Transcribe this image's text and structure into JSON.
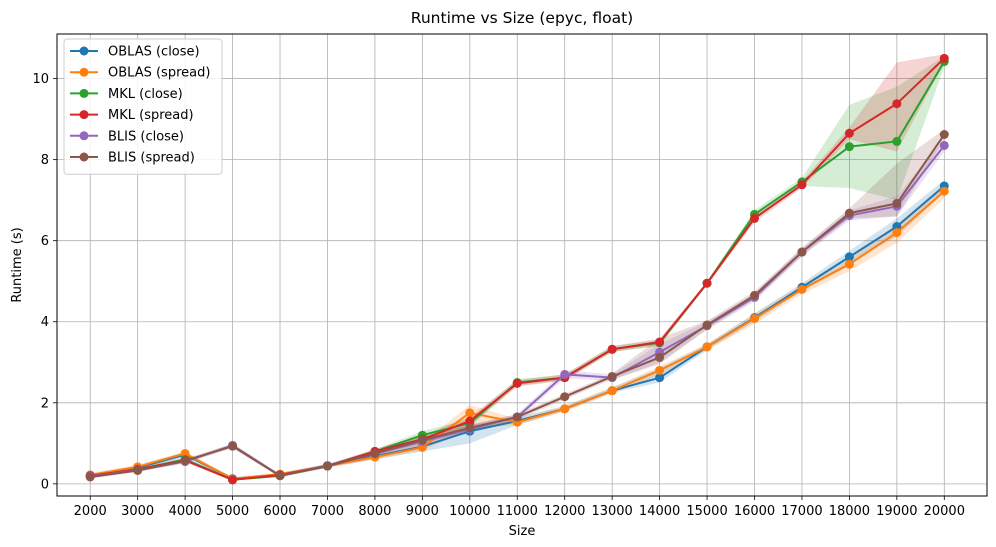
{
  "chart_data": {
    "type": "line",
    "title": "Runtime vs Size (epyc, float)",
    "xlabel": "Size",
    "ylabel": "Runtime (s)",
    "x": [
      2000,
      3000,
      4000,
      5000,
      6000,
      7000,
      8000,
      9000,
      10000,
      11000,
      12000,
      13000,
      14000,
      15000,
      16000,
      17000,
      18000,
      19000,
      20000
    ],
    "x_ticks": [
      "2000",
      "3000",
      "4000",
      "5000",
      "6000",
      "7000",
      "8000",
      "9000",
      "10000",
      "11000",
      "12000",
      "13000",
      "14000",
      "15000",
      "16000",
      "17000",
      "18000",
      "19000",
      "20000"
    ],
    "y_ticks": [
      "0",
      "2",
      "4",
      "6",
      "8",
      "10"
    ],
    "ylim": [
      -0.3,
      11.1
    ],
    "xlim": [
      1300,
      20900
    ],
    "grid": true,
    "legend_position": "top-left",
    "series": [
      {
        "name": "OBLAS (close)",
        "color": "#1f77b4",
        "values": [
          0.2,
          0.4,
          0.72,
          0.13,
          0.22,
          0.45,
          0.68,
          0.92,
          1.3,
          1.55,
          1.85,
          2.3,
          2.62,
          3.38,
          4.1,
          4.85,
          5.6,
          6.35,
          7.35
        ],
        "band_low": [
          0.15,
          0.35,
          0.65,
          0.1,
          0.18,
          0.4,
          0.6,
          0.8,
          1.0,
          1.45,
          1.8,
          2.25,
          2.5,
          3.3,
          4.0,
          4.75,
          5.45,
          6.1,
          7.2
        ],
        "band_high": [
          0.25,
          0.45,
          0.78,
          0.16,
          0.26,
          0.5,
          0.75,
          1.05,
          1.45,
          1.65,
          1.92,
          2.38,
          2.85,
          3.45,
          4.2,
          4.95,
          5.75,
          6.55,
          7.5
        ]
      },
      {
        "name": "OBLAS (spread)",
        "color": "#ff7f0e",
        "values": [
          0.22,
          0.42,
          0.75,
          0.12,
          0.24,
          0.44,
          0.66,
          0.9,
          1.75,
          1.52,
          1.85,
          2.3,
          2.8,
          3.38,
          4.08,
          4.8,
          5.42,
          6.2,
          7.22
        ],
        "band_low": [
          0.17,
          0.37,
          0.7,
          0.09,
          0.2,
          0.4,
          0.6,
          0.82,
          1.35,
          1.45,
          1.78,
          2.22,
          2.7,
          3.3,
          3.95,
          4.68,
          5.25,
          5.95,
          7.05
        ],
        "band_high": [
          0.27,
          0.47,
          0.8,
          0.16,
          0.28,
          0.48,
          0.72,
          1.0,
          1.95,
          1.6,
          1.92,
          2.38,
          2.9,
          3.45,
          4.2,
          4.92,
          5.6,
          6.4,
          7.4
        ]
      },
      {
        "name": "MKL (close)",
        "color": "#2ca02c",
        "values": [
          0.18,
          0.35,
          0.6,
          0.1,
          0.2,
          0.44,
          0.8,
          1.2,
          1.5,
          2.5,
          2.62,
          3.32,
          3.48,
          4.95,
          6.65,
          7.45,
          8.32,
          8.45,
          10.42
        ],
        "band_low": [
          0.15,
          0.3,
          0.55,
          0.08,
          0.17,
          0.4,
          0.75,
          1.1,
          1.4,
          2.42,
          2.55,
          3.25,
          3.4,
          4.9,
          6.55,
          7.35,
          7.3,
          7.0,
          10.3
        ],
        "band_high": [
          0.22,
          0.4,
          0.65,
          0.13,
          0.23,
          0.48,
          0.85,
          1.3,
          1.6,
          2.58,
          2.7,
          3.4,
          3.55,
          5.0,
          6.75,
          7.55,
          9.35,
          9.8,
          10.55
        ]
      },
      {
        "name": "MKL (spread)",
        "color": "#d62728",
        "values": [
          0.2,
          0.36,
          0.58,
          0.1,
          0.22,
          0.44,
          0.8,
          1.1,
          1.55,
          2.48,
          2.62,
          3.32,
          3.5,
          4.95,
          6.55,
          7.38,
          8.65,
          9.38,
          10.5
        ],
        "band_low": [
          0.16,
          0.32,
          0.53,
          0.08,
          0.18,
          0.4,
          0.74,
          1.0,
          1.45,
          2.4,
          2.55,
          3.25,
          3.42,
          4.9,
          6.45,
          7.3,
          8.5,
          8.2,
          10.4
        ],
        "band_high": [
          0.24,
          0.4,
          0.63,
          0.13,
          0.26,
          0.48,
          0.86,
          1.2,
          1.65,
          2.56,
          2.7,
          3.4,
          3.58,
          5.0,
          6.65,
          7.46,
          8.8,
          10.4,
          10.6
        ]
      },
      {
        "name": "BLIS (close)",
        "color": "#9467bd",
        "values": [
          0.18,
          0.34,
          0.55,
          0.95,
          0.2,
          0.44,
          0.74,
          1.05,
          1.35,
          1.65,
          2.7,
          2.62,
          3.25,
          3.9,
          4.6,
          5.72,
          6.62,
          6.85,
          8.35
        ],
        "band_low": [
          0.14,
          0.3,
          0.5,
          0.9,
          0.16,
          0.4,
          0.68,
          0.95,
          1.25,
          1.58,
          2.6,
          2.55,
          3.0,
          3.8,
          4.5,
          5.62,
          6.5,
          6.6,
          8.2
        ],
        "band_high": [
          0.22,
          0.38,
          0.6,
          1.0,
          0.24,
          0.48,
          0.8,
          1.15,
          1.45,
          1.72,
          2.8,
          2.7,
          3.45,
          4.0,
          4.7,
          5.82,
          6.75,
          7.1,
          8.5
        ]
      },
      {
        "name": "BLIS (spread)",
        "color": "#8c564b",
        "values": [
          0.17,
          0.33,
          0.57,
          0.93,
          0.2,
          0.44,
          0.75,
          1.08,
          1.38,
          1.65,
          2.15,
          2.65,
          3.12,
          3.92,
          4.65,
          5.72,
          6.68,
          6.92,
          8.62
        ],
        "band_low": [
          0.13,
          0.29,
          0.52,
          0.88,
          0.16,
          0.4,
          0.7,
          1.0,
          1.3,
          1.58,
          2.08,
          2.58,
          2.95,
          3.82,
          4.55,
          5.62,
          6.55,
          6.6,
          8.5
        ],
        "band_high": [
          0.21,
          0.37,
          0.62,
          0.98,
          0.24,
          0.48,
          0.8,
          1.16,
          1.46,
          1.72,
          2.22,
          2.72,
          3.6,
          4.02,
          4.75,
          5.82,
          6.8,
          7.9,
          8.75
        ]
      }
    ]
  }
}
